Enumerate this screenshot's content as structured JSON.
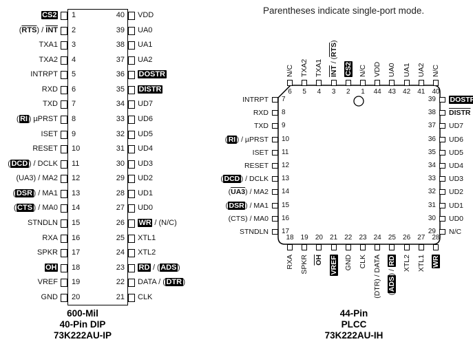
{
  "note": "Parentheses indicate single-port mode.",
  "legend_styles": {
    "inv": "signal shown inverted (active-low, solid bar)",
    "ovl": "signal shown with overline (active-low)",
    "p": "plain"
  },
  "dip": {
    "caption": [
      "600-Mil",
      "40-Pin DIP",
      "73K222AU-IP"
    ],
    "left_pins": [
      {
        "num": "1",
        "segs": [
          {
            "t": "CS2",
            "s": "inv"
          }
        ]
      },
      {
        "num": "2",
        "segs": [
          {
            "t": "(",
            "s": "p"
          },
          {
            "t": "RTS",
            "s": "ovl"
          },
          {
            "t": ") / ",
            "s": "p"
          },
          {
            "t": "INT",
            "s": "ovl"
          }
        ]
      },
      {
        "num": "3",
        "segs": [
          {
            "t": "TXA1",
            "s": "p"
          }
        ]
      },
      {
        "num": "4",
        "segs": [
          {
            "t": "TXA2",
            "s": "p"
          }
        ]
      },
      {
        "num": "5",
        "segs": [
          {
            "t": "INTRPT",
            "s": "p"
          }
        ]
      },
      {
        "num": "6",
        "segs": [
          {
            "t": "RXD",
            "s": "p"
          }
        ]
      },
      {
        "num": "7",
        "segs": [
          {
            "t": "TXD",
            "s": "p"
          }
        ]
      },
      {
        "num": "8",
        "segs": [
          {
            "t": "(",
            "s": "p"
          },
          {
            "t": "RI",
            "s": "inv"
          },
          {
            "t": ") µPRST",
            "s": "p"
          }
        ]
      },
      {
        "num": "9",
        "segs": [
          {
            "t": "ISET",
            "s": "p"
          }
        ]
      },
      {
        "num": "10",
        "segs": [
          {
            "t": "RESET",
            "s": "p"
          }
        ]
      },
      {
        "num": "11",
        "segs": [
          {
            "t": "(",
            "s": "p"
          },
          {
            "t": "DCD",
            "s": "inv"
          },
          {
            "t": ") / DCLK",
            "s": "p"
          }
        ]
      },
      {
        "num": "12",
        "segs": [
          {
            "t": "(UA3) / MA2",
            "s": "p"
          }
        ]
      },
      {
        "num": "13",
        "segs": [
          {
            "t": "(",
            "s": "p"
          },
          {
            "t": "DSR",
            "s": "inv"
          },
          {
            "t": ") / MA1",
            "s": "p"
          }
        ]
      },
      {
        "num": "14",
        "segs": [
          {
            "t": "(",
            "s": "p"
          },
          {
            "t": "CTS",
            "s": "inv"
          },
          {
            "t": ") / MA0",
            "s": "p"
          }
        ]
      },
      {
        "num": "15",
        "segs": [
          {
            "t": "STNDLN",
            "s": "p"
          }
        ]
      },
      {
        "num": "16",
        "segs": [
          {
            "t": "RXA",
            "s": "p"
          }
        ]
      },
      {
        "num": "17",
        "segs": [
          {
            "t": "SPKR",
            "s": "p"
          }
        ]
      },
      {
        "num": "18",
        "segs": [
          {
            "t": "OH",
            "s": "inv"
          }
        ]
      },
      {
        "num": "19",
        "segs": [
          {
            "t": "VREF",
            "s": "p"
          }
        ]
      },
      {
        "num": "20",
        "segs": [
          {
            "t": "GND",
            "s": "p"
          }
        ]
      }
    ],
    "right_pins": [
      {
        "num": "40",
        "segs": [
          {
            "t": "VDD",
            "s": "p"
          }
        ]
      },
      {
        "num": "39",
        "segs": [
          {
            "t": "UA0",
            "s": "p"
          }
        ]
      },
      {
        "num": "38",
        "segs": [
          {
            "t": "UA1",
            "s": "p"
          }
        ]
      },
      {
        "num": "37",
        "segs": [
          {
            "t": "UA2",
            "s": "p"
          }
        ]
      },
      {
        "num": "36",
        "segs": [
          {
            "t": "DOSTR",
            "s": "inv"
          }
        ]
      },
      {
        "num": "35",
        "segs": [
          {
            "t": "DISTR",
            "s": "inv"
          }
        ]
      },
      {
        "num": "34",
        "segs": [
          {
            "t": "UD7",
            "s": "p"
          }
        ]
      },
      {
        "num": "33",
        "segs": [
          {
            "t": "UD6",
            "s": "p"
          }
        ]
      },
      {
        "num": "32",
        "segs": [
          {
            "t": "UD5",
            "s": "p"
          }
        ]
      },
      {
        "num": "31",
        "segs": [
          {
            "t": "UD4",
            "s": "p"
          }
        ]
      },
      {
        "num": "30",
        "segs": [
          {
            "t": "UD3",
            "s": "p"
          }
        ]
      },
      {
        "num": "29",
        "segs": [
          {
            "t": "UD2",
            "s": "p"
          }
        ]
      },
      {
        "num": "28",
        "segs": [
          {
            "t": "UD1",
            "s": "p"
          }
        ]
      },
      {
        "num": "27",
        "segs": [
          {
            "t": "UD0",
            "s": "p"
          }
        ]
      },
      {
        "num": "26",
        "segs": [
          {
            "t": "WR",
            "s": "inv"
          },
          {
            "t": " / (N/C)",
            "s": "p"
          }
        ]
      },
      {
        "num": "25",
        "segs": [
          {
            "t": "XTL1",
            "s": "p"
          }
        ]
      },
      {
        "num": "24",
        "segs": [
          {
            "t": "XTL2",
            "s": "p"
          }
        ]
      },
      {
        "num": "23",
        "segs": [
          {
            "t": "RD",
            "s": "inv"
          },
          {
            "t": " / (",
            "s": "p"
          },
          {
            "t": "ADS",
            "s": "inv"
          },
          {
            "t": ")",
            "s": "p"
          }
        ]
      },
      {
        "num": "22",
        "segs": [
          {
            "t": "DATA / (",
            "s": "p"
          },
          {
            "t": "DTR",
            "s": "inv"
          },
          {
            "t": ")",
            "s": "p"
          }
        ]
      },
      {
        "num": "21",
        "segs": [
          {
            "t": "CLK",
            "s": "p"
          }
        ]
      }
    ]
  },
  "plcc": {
    "caption": [
      "44-Pin",
      "PLCC",
      "73K222AU-IH"
    ],
    "top_pins": [
      {
        "num": "6",
        "segs": [
          {
            "t": "N/C",
            "s": "p"
          }
        ]
      },
      {
        "num": "5",
        "segs": [
          {
            "t": "TXA2",
            "s": "p"
          }
        ]
      },
      {
        "num": "4",
        "segs": [
          {
            "t": "TXA1",
            "s": "p"
          }
        ]
      },
      {
        "num": "3",
        "segs": [
          {
            "t": "INT",
            "s": "ovl"
          },
          {
            "t": " / (",
            "s": "p"
          },
          {
            "t": "RTS",
            "s": "ovl"
          },
          {
            "t": ")",
            "s": "p"
          }
        ]
      },
      {
        "num": "2",
        "segs": [
          {
            "t": "CS2",
            "s": "inv"
          }
        ]
      },
      {
        "num": "1",
        "segs": [
          {
            "t": "N/C",
            "s": "p"
          }
        ]
      },
      {
        "num": "44",
        "segs": [
          {
            "t": "VDD",
            "s": "p"
          }
        ]
      },
      {
        "num": "43",
        "segs": [
          {
            "t": "UA0",
            "s": "p"
          }
        ]
      },
      {
        "num": "42",
        "segs": [
          {
            "t": "UA1",
            "s": "p"
          }
        ]
      },
      {
        "num": "41",
        "segs": [
          {
            "t": "UA2",
            "s": "p"
          }
        ]
      },
      {
        "num": "40",
        "segs": [
          {
            "t": "N/C",
            "s": "p"
          }
        ]
      }
    ],
    "left_pins": [
      {
        "num": "7",
        "segs": [
          {
            "t": "INTRPT",
            "s": "p"
          }
        ]
      },
      {
        "num": "8",
        "segs": [
          {
            "t": "RXD",
            "s": "p"
          }
        ]
      },
      {
        "num": "9",
        "segs": [
          {
            "t": "TXD",
            "s": "p"
          }
        ]
      },
      {
        "num": "10",
        "segs": [
          {
            "t": "(",
            "s": "p"
          },
          {
            "t": "RI",
            "s": "inv"
          },
          {
            "t": ") / µPRST",
            "s": "p"
          }
        ]
      },
      {
        "num": "11",
        "segs": [
          {
            "t": "ISET",
            "s": "p"
          }
        ]
      },
      {
        "num": "12",
        "segs": [
          {
            "t": "RESET",
            "s": "p"
          }
        ]
      },
      {
        "num": "13",
        "segs": [
          {
            "t": "(",
            "s": "p"
          },
          {
            "t": "DCD",
            "s": "inv"
          },
          {
            "t": ") / DCLK",
            "s": "p"
          }
        ]
      },
      {
        "num": "14",
        "segs": [
          {
            "t": "(",
            "s": "p"
          },
          {
            "t": "UA3",
            "s": "ovl"
          },
          {
            "t": ") / MA2",
            "s": "p"
          }
        ]
      },
      {
        "num": "15",
        "segs": [
          {
            "t": "(",
            "s": "p"
          },
          {
            "t": "DSR",
            "s": "inv"
          },
          {
            "t": ") / MA1",
            "s": "p"
          }
        ]
      },
      {
        "num": "16",
        "segs": [
          {
            "t": "(CTS) / MA0",
            "s": "p"
          }
        ]
      },
      {
        "num": "17",
        "segs": [
          {
            "t": "STNDLN",
            "s": "p"
          }
        ]
      }
    ],
    "right_pins": [
      {
        "num": "39",
        "segs": [
          {
            "t": "DOSTR",
            "s": "inv"
          }
        ]
      },
      {
        "num": "38",
        "segs": [
          {
            "t": "DISTR",
            "s": "ovl"
          }
        ]
      },
      {
        "num": "37",
        "segs": [
          {
            "t": "UD7",
            "s": "p"
          }
        ]
      },
      {
        "num": "36",
        "segs": [
          {
            "t": "UD6",
            "s": "p"
          }
        ]
      },
      {
        "num": "35",
        "segs": [
          {
            "t": "UD5",
            "s": "p"
          }
        ]
      },
      {
        "num": "34",
        "segs": [
          {
            "t": "UD4",
            "s": "p"
          }
        ]
      },
      {
        "num": "33",
        "segs": [
          {
            "t": "UD3",
            "s": "p"
          }
        ]
      },
      {
        "num": "32",
        "segs": [
          {
            "t": "UD2",
            "s": "p"
          }
        ]
      },
      {
        "num": "31",
        "segs": [
          {
            "t": "UD1",
            "s": "p"
          }
        ]
      },
      {
        "num": "30",
        "segs": [
          {
            "t": "UD0",
            "s": "p"
          }
        ]
      },
      {
        "num": "29",
        "segs": [
          {
            "t": "N/C",
            "s": "p"
          }
        ]
      }
    ],
    "bottom_pins": [
      {
        "num": "18",
        "segs": [
          {
            "t": "RXA",
            "s": "p"
          }
        ]
      },
      {
        "num": "19",
        "segs": [
          {
            "t": "SPKR",
            "s": "p"
          }
        ]
      },
      {
        "num": "20",
        "segs": [
          {
            "t": "OH",
            "s": "ovl"
          }
        ]
      },
      {
        "num": "21",
        "segs": [
          {
            "t": "VREF",
            "s": "inv"
          }
        ]
      },
      {
        "num": "22",
        "segs": [
          {
            "t": "GND",
            "s": "p"
          }
        ]
      },
      {
        "num": "23",
        "segs": [
          {
            "t": "CLK",
            "s": "p"
          }
        ]
      },
      {
        "num": "24",
        "segs": [
          {
            "t": "(DTR) / DATA",
            "s": "p"
          }
        ]
      },
      {
        "num": "25",
        "segs": [
          {
            "t": "(",
            "s": "p"
          },
          {
            "t": "ADS",
            "s": "inv"
          },
          {
            "t": ") / ",
            "s": "p"
          },
          {
            "t": "RD",
            "s": "inv"
          }
        ]
      },
      {
        "num": "26",
        "segs": [
          {
            "t": "XTL2",
            "s": "p"
          }
        ]
      },
      {
        "num": "27",
        "segs": [
          {
            "t": "XTL1",
            "s": "p"
          }
        ]
      },
      {
        "num": "28",
        "segs": [
          {
            "t": "WR",
            "s": "inv"
          }
        ]
      }
    ]
  }
}
